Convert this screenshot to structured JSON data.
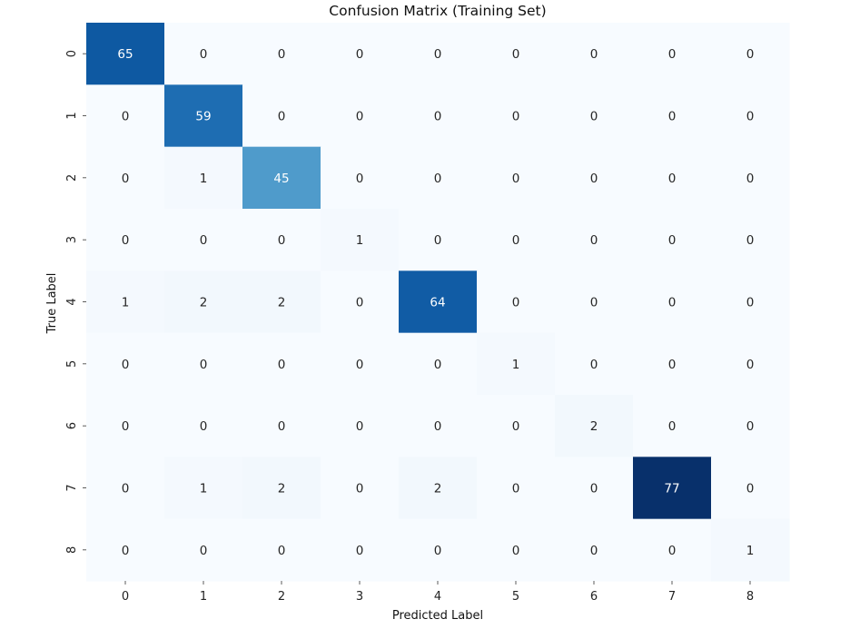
{
  "chart_data": {
    "type": "heatmap",
    "title": "Confusion Matrix (Training Set)",
    "xlabel": "Predicted Label",
    "ylabel": "True Label",
    "x_categories": [
      "0",
      "1",
      "2",
      "3",
      "4",
      "5",
      "6",
      "7",
      "8"
    ],
    "y_categories": [
      "0",
      "1",
      "2",
      "3",
      "4",
      "5",
      "6",
      "7",
      "8"
    ],
    "matrix": [
      [
        65,
        0,
        0,
        0,
        0,
        0,
        0,
        0,
        0
      ],
      [
        0,
        59,
        0,
        0,
        0,
        0,
        0,
        0,
        0
      ],
      [
        0,
        1,
        45,
        0,
        0,
        0,
        0,
        0,
        0
      ],
      [
        0,
        0,
        0,
        1,
        0,
        0,
        0,
        0,
        0
      ],
      [
        1,
        2,
        2,
        0,
        64,
        0,
        0,
        0,
        0
      ],
      [
        0,
        0,
        0,
        0,
        0,
        1,
        0,
        0,
        0
      ],
      [
        0,
        0,
        0,
        0,
        0,
        0,
        2,
        0,
        0
      ],
      [
        0,
        1,
        2,
        0,
        2,
        0,
        0,
        77,
        0
      ],
      [
        0,
        0,
        0,
        0,
        0,
        0,
        0,
        0,
        1
      ]
    ],
    "colormap": "Blues",
    "value_range": [
      0,
      77
    ],
    "colorbar": false
  }
}
